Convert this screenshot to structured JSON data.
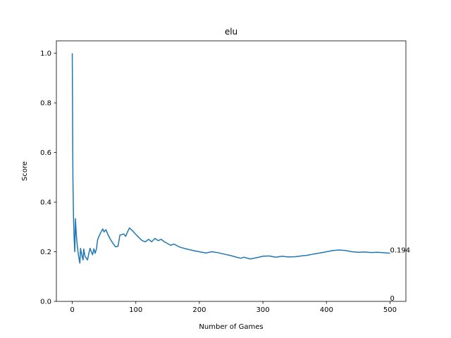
{
  "chart_data": {
    "type": "line",
    "title": "elu",
    "xlabel": "Number of Games",
    "ylabel": "Score",
    "xlim": [
      -25,
      525
    ],
    "ylim": [
      0.0,
      1.05
    ],
    "xticks": [
      0,
      100,
      200,
      300,
      400,
      500
    ],
    "xtick_labels": [
      "0",
      "100",
      "200",
      "300",
      "400",
      "500"
    ],
    "yticks": [
      0.0,
      0.2,
      0.4,
      0.6,
      0.8,
      1.0
    ],
    "ytick_labels": [
      "0.0",
      "0.2",
      "0.4",
      "0.6",
      "0.8",
      "1.0"
    ],
    "grid": false,
    "line_color": "#1f77b4",
    "series": [
      {
        "x": [
          0,
          1,
          2,
          3,
          4,
          5,
          6,
          7,
          8,
          9,
          10,
          11,
          12,
          13,
          14,
          15,
          16,
          17,
          18,
          20,
          22,
          24,
          26,
          28,
          30,
          32,
          34,
          36,
          38,
          40,
          42,
          44,
          46,
          48,
          50,
          53,
          56,
          60,
          64,
          68,
          72,
          75,
          78,
          81,
          84,
          87,
          90,
          95,
          100,
          105,
          110,
          115,
          120,
          125,
          130,
          135,
          140,
          145,
          150,
          155,
          160,
          165,
          170,
          180,
          190,
          200,
          210,
          220,
          230,
          240,
          250,
          260,
          265,
          270,
          280,
          290,
          300,
          310,
          320,
          330,
          340,
          350,
          360,
          370,
          380,
          390,
          400,
          410,
          420,
          430,
          440,
          450,
          460,
          470,
          480,
          490,
          500
        ],
        "y": [
          1.0,
          0.5,
          0.333,
          0.25,
          0.2,
          0.333,
          0.286,
          0.25,
          0.222,
          0.2,
          0.182,
          0.167,
          0.154,
          0.214,
          0.2,
          0.188,
          0.176,
          0.167,
          0.211,
          0.182,
          0.174,
          0.167,
          0.192,
          0.214,
          0.2,
          0.188,
          0.212,
          0.194,
          0.211,
          0.25,
          0.262,
          0.273,
          0.283,
          0.292,
          0.28,
          0.289,
          0.27,
          0.25,
          0.234,
          0.22,
          0.222,
          0.267,
          0.269,
          0.272,
          0.262,
          0.28,
          0.296,
          0.284,
          0.27,
          0.257,
          0.245,
          0.24,
          0.25,
          0.24,
          0.254,
          0.245,
          0.25,
          0.24,
          0.233,
          0.226,
          0.231,
          0.224,
          0.218,
          0.211,
          0.205,
          0.2,
          0.195,
          0.2,
          0.196,
          0.19,
          0.184,
          0.177,
          0.174,
          0.178,
          0.171,
          0.176,
          0.182,
          0.183,
          0.178,
          0.182,
          0.179,
          0.18,
          0.183,
          0.186,
          0.191,
          0.195,
          0.2,
          0.205,
          0.207,
          0.205,
          0.2,
          0.198,
          0.199,
          0.197,
          0.198,
          0.196,
          0.194
        ]
      }
    ],
    "annotations": [
      {
        "text": "0.194",
        "x": 500,
        "y": 0.194
      },
      {
        "text": "0",
        "x": 500,
        "y": 0.0
      }
    ]
  }
}
